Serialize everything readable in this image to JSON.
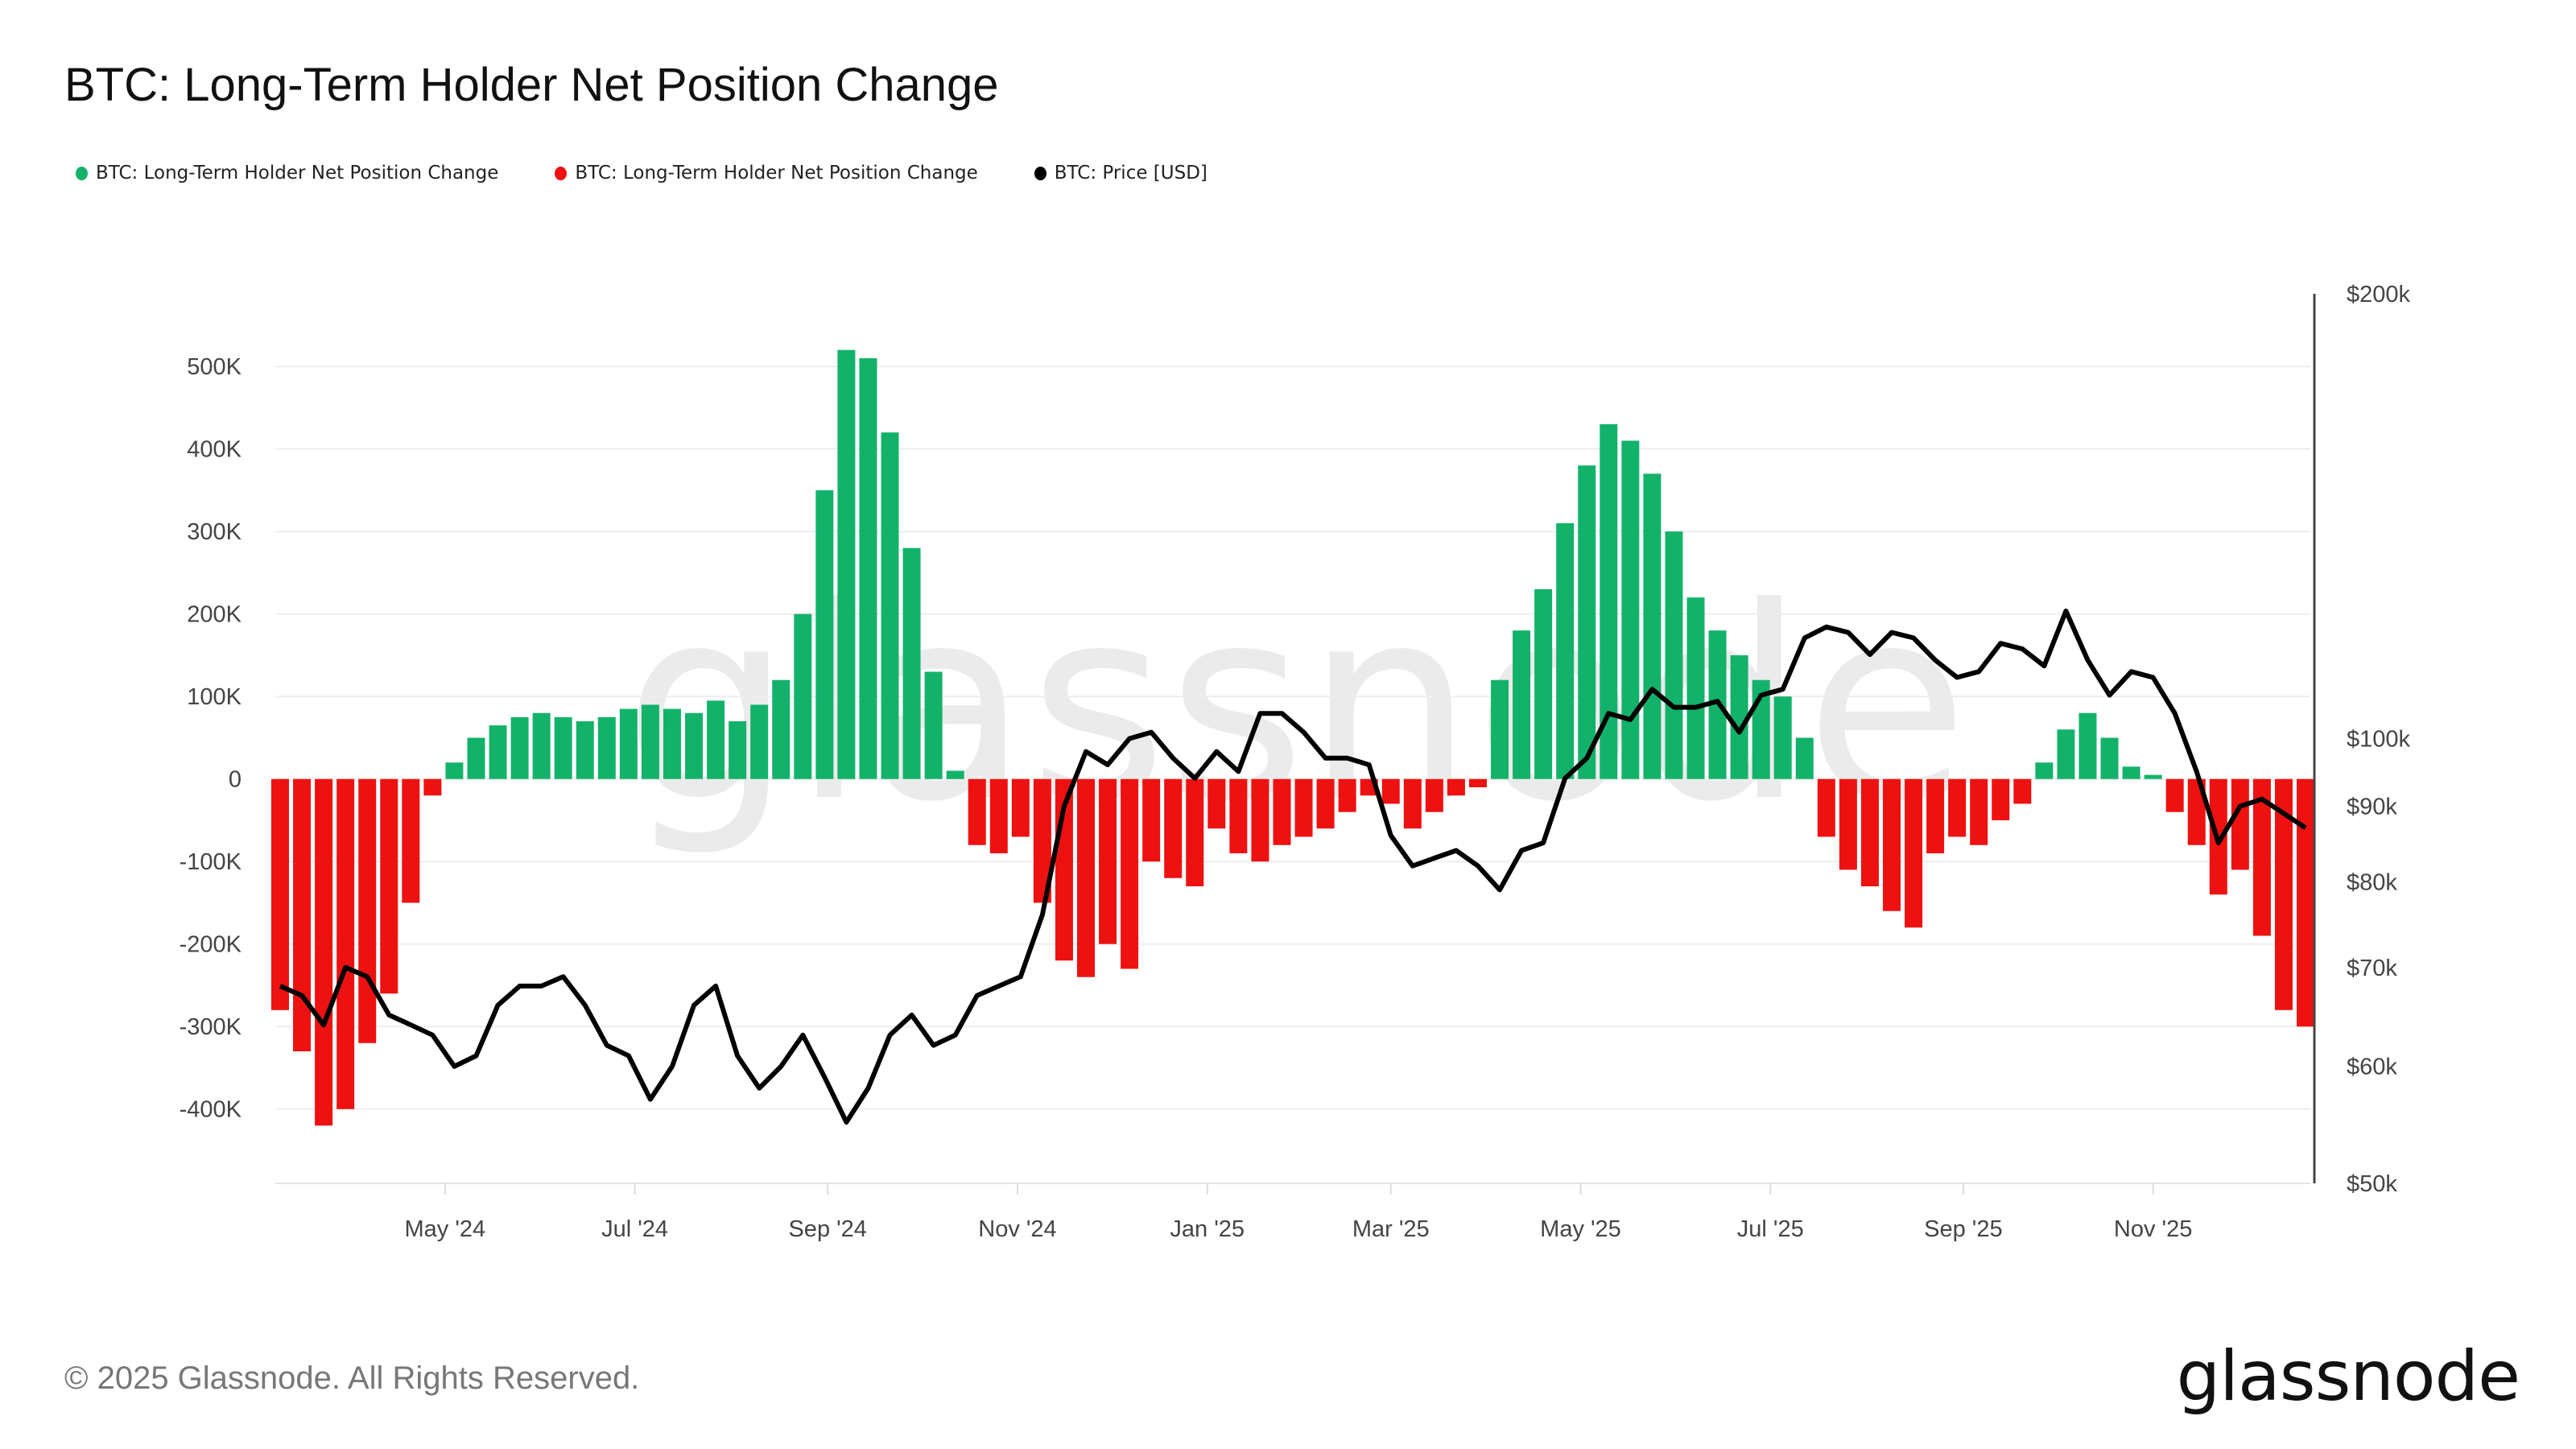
{
  "title": "BTC: Long-Term Holder Net Position Change",
  "legend": [
    {
      "label": "BTC: Long-Term Holder Net Position Change",
      "color": "#13b26b"
    },
    {
      "label": "BTC: Long-Term Holder Net Position Change",
      "color": "#ee1111"
    },
    {
      "label": "BTC: Price [USD]",
      "color": "#000000"
    }
  ],
  "footer": {
    "copyright": "© 2025 Glassnode. All Rights Reserved.",
    "logo": "glassnode"
  },
  "watermark": "glassnode",
  "chart_data": {
    "type": "bar+line",
    "title": "BTC: Long-Term Holder Net Position Change",
    "x_ticks": [
      {
        "label": "May '24",
        "date": "2024-05-01"
      },
      {
        "label": "Jul '24",
        "date": "2024-07-01"
      },
      {
        "label": "Sep '24",
        "date": "2024-09-01"
      },
      {
        "label": "Nov '24",
        "date": "2024-11-01"
      },
      {
        "label": "Jan '25",
        "date": "2025-01-01"
      },
      {
        "label": "Mar '25",
        "date": "2025-03-01"
      },
      {
        "label": "May '25",
        "date": "2025-05-01"
      },
      {
        "label": "Jul '25",
        "date": "2025-07-01"
      },
      {
        "label": "Sep '25",
        "date": "2025-09-01"
      },
      {
        "label": "Nov '25",
        "date": "2025-11-01"
      }
    ],
    "x_range": [
      "2024-03-09",
      "2025-12-20"
    ],
    "y_left": {
      "ticks": [
        -400,
        -300,
        -200,
        -100,
        0,
        100,
        200,
        300,
        400,
        500
      ],
      "tick_labels": [
        "-400K",
        "-300K",
        "-200K",
        "-100K",
        "0",
        "100K",
        "200K",
        "300K",
        "400K",
        "500K"
      ],
      "range": [
        -490,
        588
      ],
      "unit": "BTC (thousands)",
      "grid": true
    },
    "y_right": {
      "scale": "log",
      "ticks": [
        50,
        60,
        70,
        80,
        90,
        100,
        200
      ],
      "tick_labels": [
        "$50k",
        "$60k",
        "$70k",
        "$80k",
        "$90k",
        "$100k",
        "$200k"
      ],
      "range": [
        50,
        200
      ]
    },
    "start_date": "2024-03-09",
    "interval_days": 7,
    "lth_net_position_change_k": [
      -280,
      -330,
      -420,
      -400,
      -320,
      -260,
      -150,
      -20,
      20,
      50,
      65,
      75,
      80,
      75,
      70,
      75,
      85,
      90,
      85,
      80,
      95,
      70,
      90,
      120,
      200,
      350,
      520,
      510,
      420,
      280,
      130,
      10,
      -80,
      -90,
      -70,
      -150,
      -220,
      -240,
      -200,
      -230,
      -100,
      -120,
      -130,
      -60,
      -90,
      -100,
      -80,
      -70,
      -60,
      -40,
      -20,
      -30,
      -60,
      -40,
      -20,
      -10,
      120,
      180,
      230,
      310,
      380,
      430,
      410,
      370,
      300,
      220,
      180,
      150,
      120,
      100,
      50,
      -70,
      -110,
      -130,
      -160,
      -180,
      -90,
      -70,
      -80,
      -50,
      -30,
      20,
      60,
      80,
      50,
      15,
      5,
      -40,
      -80,
      -140,
      -110,
      -190,
      -280,
      -300
    ],
    "price_usd_k": [
      68,
      67,
      64,
      70,
      69,
      65,
      64,
      63,
      60,
      61,
      66,
      68,
      68,
      69,
      66,
      62,
      61,
      57,
      60,
      66,
      68,
      61,
      58,
      60,
      63,
      59,
      55,
      58,
      63,
      65,
      62,
      63,
      67,
      68,
      69,
      76,
      90,
      98,
      96,
      100,
      101,
      97,
      94,
      98,
      95,
      104,
      104,
      101,
      97,
      97,
      96,
      86,
      82,
      83,
      84,
      82,
      79,
      84,
      85,
      94,
      97,
      104,
      103,
      108,
      105,
      105,
      106,
      101,
      107,
      108,
      117,
      119,
      118,
      114,
      118,
      117,
      113,
      110,
      111,
      116,
      115,
      112,
      122,
      113,
      107,
      111,
      110,
      104,
      95,
      85,
      90,
      91,
      89,
      87
    ],
    "colors": {
      "positive": "#13b26b",
      "negative": "#ee1111",
      "price": "#000000"
    }
  }
}
